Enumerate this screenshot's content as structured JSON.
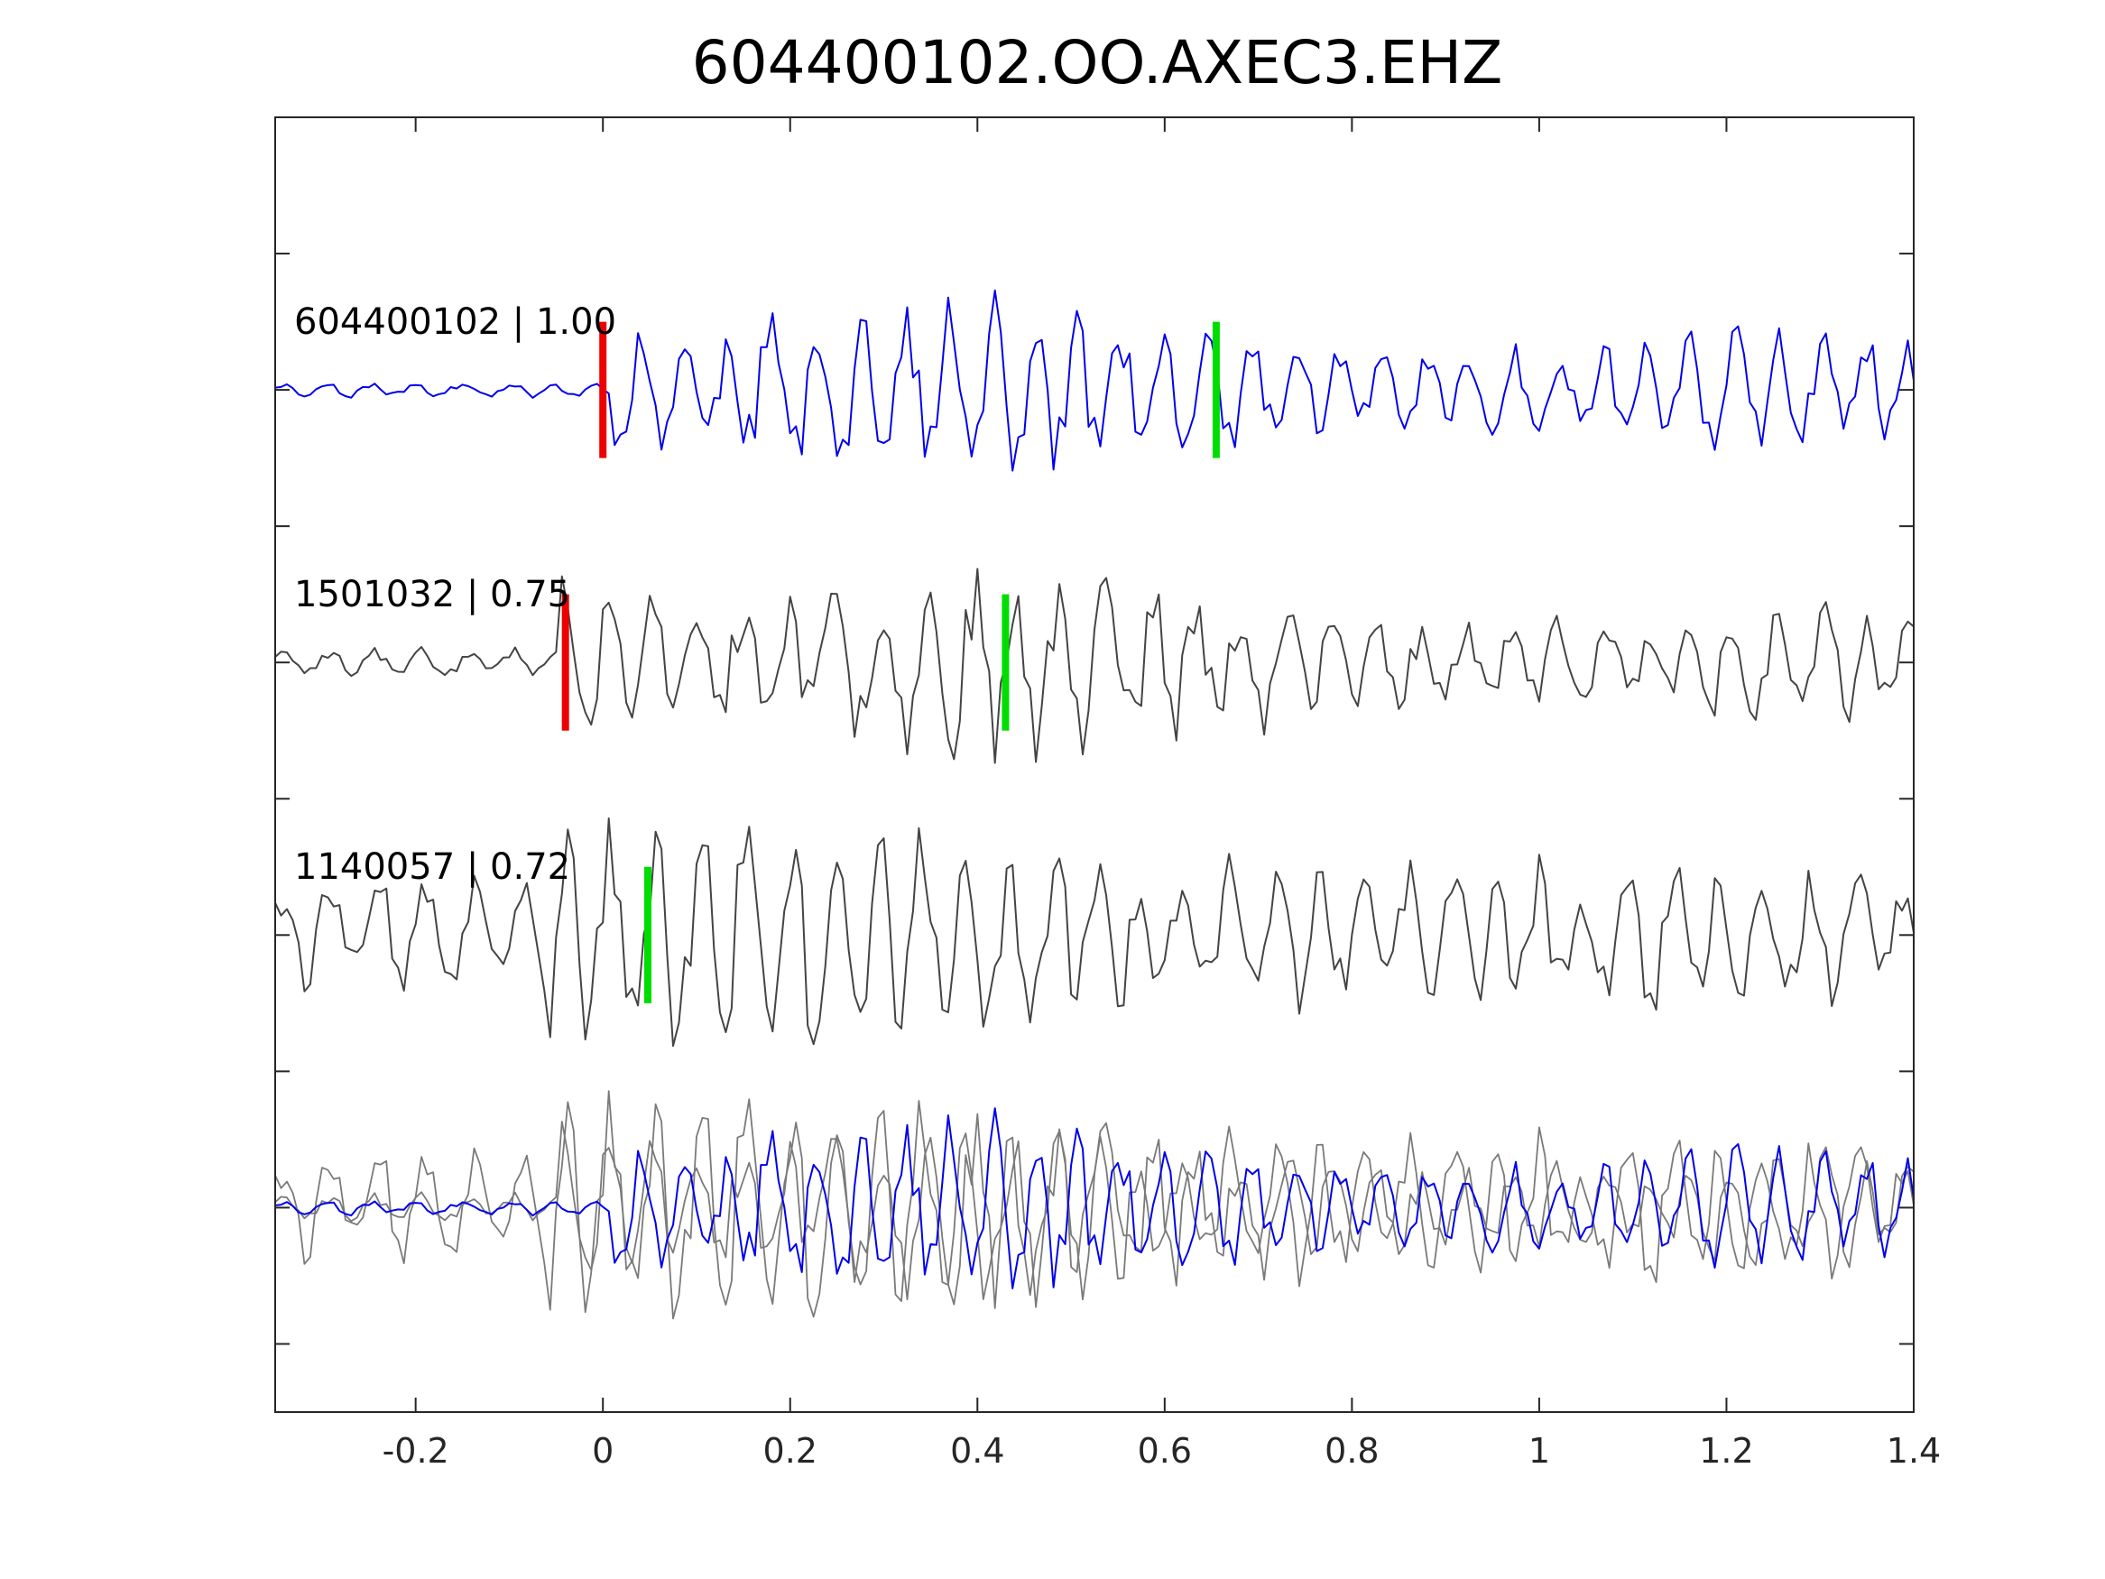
{
  "chart_data": {
    "type": "line",
    "title": "604400102.OO.AXEC3.EHZ",
    "xlabel": "",
    "ylabel": "",
    "xlim": [
      -0.35,
      1.4
    ],
    "ylim": [
      0,
      9.5
    ],
    "grid": false,
    "x_ticks": [
      -0.2,
      0,
      0.2,
      0.4,
      0.6,
      0.8,
      1,
      1.2,
      1.4
    ],
    "x_tick_labels": [
      "-0.2",
      "0",
      "0.2",
      "0.4",
      "0.6",
      "0.8",
      "1",
      "1.2",
      "1.4"
    ],
    "y_ticks": [
      0.5,
      1.5,
      2.5,
      3.5,
      4.5,
      5.5,
      6.5,
      7.5,
      8.5
    ],
    "sample_step": 0.00625,
    "series": [
      {
        "id": "trace-604400102",
        "label": "604400102 | 1.00",
        "color": "#0000ee",
        "baseline": 7.5,
        "amplitude_scale": 1.0,
        "p_pick": 0.0,
        "s_pick": 0.655,
        "values": []
      },
      {
        "id": "trace-1501032",
        "label": "1501032 | 0.75",
        "color": "#444444",
        "baseline": 5.5,
        "amplitude_scale": 1.0,
        "p_pick": -0.04,
        "s_pick": 0.43,
        "values": []
      },
      {
        "id": "trace-1140057",
        "label": "1140057 | 0.72",
        "color": "#444444",
        "baseline": 3.5,
        "amplitude_scale": 1.0,
        "p_pick": null,
        "s_pick": 0.048,
        "values": []
      }
    ],
    "overlay": {
      "baseline": 1.5,
      "colors": {
        "reference": "#0000ee",
        "others": "#7a7a7a"
      }
    },
    "pick_colors": {
      "p": "#ee0000",
      "s": "#00dd00"
    }
  }
}
